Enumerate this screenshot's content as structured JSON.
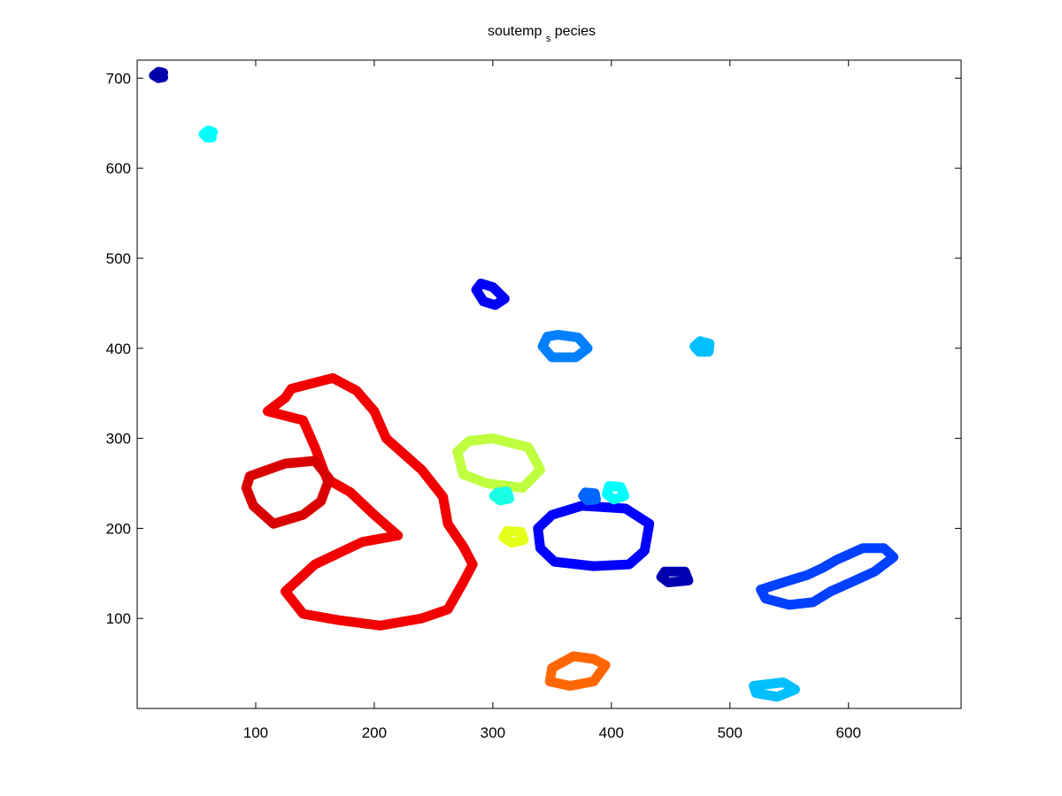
{
  "chart_data": {
    "type": "scatter",
    "title": {
      "main": "soutemp",
      "subscript": "s",
      "rest": "pecies"
    },
    "xlabel": "",
    "ylabel": "",
    "xlim": [
      0,
      695
    ],
    "ylim": [
      0,
      720
    ],
    "x_ticks": [
      100,
      200,
      300,
      400,
      500,
      600
    ],
    "y_ticks": [
      100,
      200,
      300,
      400,
      500,
      600,
      700
    ],
    "grid": false,
    "legend": "none",
    "colormap": "jet",
    "colormap_stops": [
      "#00008f",
      "#0000ff",
      "#00ffff",
      "#ffff00",
      "#ff0000",
      "#800000"
    ],
    "series": [
      {
        "name": "",
        "outline": [
          [
            20,
            703
          ],
          [
            22,
            706
          ],
          [
            18,
            707
          ],
          [
            14,
            703
          ],
          [
            18,
            700
          ],
          [
            22,
            701
          ]
        ],
        "value": 0.05
      },
      {
        "name": "",
        "outline": [
          [
            60,
            637
          ],
          [
            64,
            640
          ],
          [
            60,
            642
          ],
          [
            56,
            638
          ],
          [
            59,
            634
          ],
          [
            63,
            634
          ]
        ],
        "value": 0.4
      },
      {
        "name": "",
        "outline": [
          [
            290,
            472
          ],
          [
            300,
            468
          ],
          [
            310,
            455
          ],
          [
            302,
            448
          ],
          [
            292,
            452
          ],
          [
            286,
            465
          ]
        ],
        "value": 0.18
      },
      {
        "name": "",
        "outline": [
          [
            355,
            415
          ],
          [
            372,
            412
          ],
          [
            380,
            400
          ],
          [
            370,
            390
          ],
          [
            350,
            390
          ],
          [
            342,
            402
          ],
          [
            346,
            413
          ]
        ],
        "value": 0.3
      },
      {
        "name": "",
        "outline": [
          [
            475,
            408
          ],
          [
            483,
            405
          ],
          [
            482,
            396
          ],
          [
            474,
            396
          ],
          [
            470,
            402
          ]
        ],
        "value": 0.35
      },
      {
        "name": "",
        "outline": [
          [
            130,
            355
          ],
          [
            165,
            367
          ],
          [
            185,
            353
          ],
          [
            200,
            330
          ],
          [
            210,
            300
          ],
          [
            240,
            265
          ],
          [
            258,
            235
          ],
          [
            262,
            205
          ],
          [
            275,
            180
          ],
          [
            283,
            160
          ],
          [
            275,
            140
          ],
          [
            262,
            110
          ],
          [
            240,
            100
          ],
          [
            205,
            92
          ],
          [
            170,
            98
          ],
          [
            140,
            105
          ],
          [
            125,
            130
          ],
          [
            150,
            160
          ],
          [
            190,
            185
          ],
          [
            220,
            192
          ],
          [
            200,
            215
          ],
          [
            180,
            240
          ],
          [
            160,
            255
          ],
          [
            150,
            290
          ],
          [
            140,
            320
          ],
          [
            110,
            330
          ],
          [
            125,
            345
          ]
        ],
        "value": 0.82
      },
      {
        "name": "",
        "outline": [
          [
            95,
            258
          ],
          [
            125,
            272
          ],
          [
            150,
            275
          ],
          [
            162,
            255
          ],
          [
            155,
            230
          ],
          [
            140,
            215
          ],
          [
            115,
            205
          ],
          [
            98,
            225
          ],
          [
            92,
            245
          ]
        ],
        "value": 0.86
      },
      {
        "name": "",
        "outline": [
          [
            280,
            297
          ],
          [
            300,
            300
          ],
          [
            330,
            290
          ],
          [
            340,
            265
          ],
          [
            325,
            245
          ],
          [
            295,
            250
          ],
          [
            275,
            260
          ],
          [
            270,
            285
          ]
        ],
        "value": 0.55
      },
      {
        "name": "",
        "outline": [
          [
            304,
            240
          ],
          [
            312,
            241
          ],
          [
            314,
            233
          ],
          [
            306,
            231
          ],
          [
            301,
            236
          ]
        ],
        "value": 0.42
      },
      {
        "name": "",
        "outline": [
          [
            312,
            197
          ],
          [
            324,
            196
          ],
          [
            326,
            187
          ],
          [
            316,
            184
          ],
          [
            309,
            190
          ]
        ],
        "value": 0.58
      },
      {
        "name": "",
        "outline": [
          [
            350,
            215
          ],
          [
            375,
            225
          ],
          [
            412,
            222
          ],
          [
            432,
            205
          ],
          [
            428,
            175
          ],
          [
            415,
            160
          ],
          [
            385,
            158
          ],
          [
            352,
            163
          ],
          [
            340,
            178
          ],
          [
            338,
            200
          ]
        ],
        "value": 0.2
      },
      {
        "name": "",
        "outline": [
          [
            378,
            240
          ],
          [
            386,
            239
          ],
          [
            387,
            232
          ],
          [
            380,
            231
          ],
          [
            376,
            236
          ]
        ],
        "value": 0.28
      },
      {
        "name": "",
        "outline": [
          [
            398,
            247
          ],
          [
            408,
            246
          ],
          [
            411,
            236
          ],
          [
            402,
            232
          ],
          [
            396,
            238
          ]
        ],
        "value": 0.4
      },
      {
        "name": "",
        "outline": [
          [
            445,
            152
          ],
          [
            462,
            152
          ],
          [
            465,
            142
          ],
          [
            448,
            140
          ],
          [
            442,
            146
          ]
        ],
        "value": 0.06
      },
      {
        "name": "",
        "outline": [
          [
            590,
            165
          ],
          [
            612,
            178
          ],
          [
            630,
            178
          ],
          [
            638,
            168
          ],
          [
            622,
            152
          ],
          [
            602,
            140
          ],
          [
            585,
            130
          ],
          [
            570,
            118
          ],
          [
            550,
            115
          ],
          [
            530,
            122
          ],
          [
            526,
            132
          ],
          [
            545,
            140
          ],
          [
            565,
            148
          ],
          [
            578,
            156
          ]
        ],
        "value": 0.25
      },
      {
        "name": "",
        "outline": [
          [
            350,
            45
          ],
          [
            368,
            58
          ],
          [
            385,
            55
          ],
          [
            395,
            48
          ],
          [
            385,
            30
          ],
          [
            365,
            25
          ],
          [
            348,
            30
          ]
        ],
        "value": 0.72
      },
      {
        "name": "",
        "outline": [
          [
            520,
            25
          ],
          [
            545,
            29
          ],
          [
            555,
            21
          ],
          [
            540,
            13
          ],
          [
            522,
            17
          ]
        ],
        "value": 0.35
      }
    ]
  }
}
